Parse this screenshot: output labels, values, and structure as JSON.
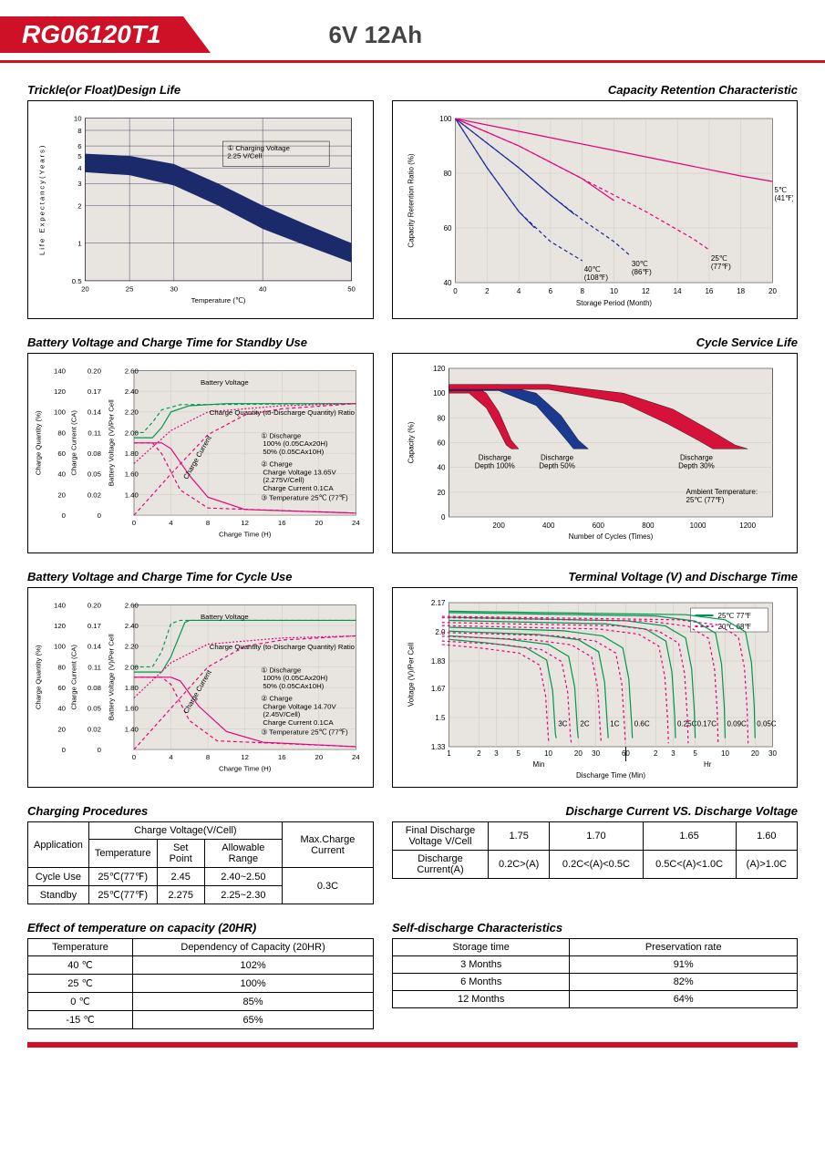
{
  "header": {
    "model": "RG06120T1",
    "spec": "6V  12Ah"
  },
  "sections": {
    "trickle": {
      "title": "Trickle(or Float)Design Life"
    },
    "retention": {
      "title": "Capacity Retention  Characteristic"
    },
    "standby": {
      "title": "Battery Voltage and Charge Time for Standby Use"
    },
    "cycle_life": {
      "title": "Cycle Service Life"
    },
    "cycle_use": {
      "title": "Battery Voltage and Charge Time for Cycle Use"
    },
    "terminal": {
      "title": "Terminal Voltage (V) and Discharge Time"
    },
    "charging_proc": {
      "title": "Charging Procedures"
    },
    "discharge_vs": {
      "title": "Discharge Current VS. Discharge Voltage"
    },
    "temp_effect": {
      "title": "Effect of temperature on capacity (20HR)"
    },
    "self_discharge": {
      "title": "Self-discharge Characteristics"
    }
  },
  "trickle_chart": {
    "type": "area-band",
    "background_color": "#e8e4df",
    "grid_color": "#2d1a4a",
    "band_color": "#1b2a6b",
    "xlabel": "Temperature (℃)",
    "ylabel": "Life Expectancy(Years)",
    "x_ticks": [
      "20",
      "25",
      "30",
      "40",
      "50"
    ],
    "y_ticks": [
      "0.5",
      "1",
      "2",
      "3",
      "4",
      "5",
      "6",
      "8",
      "10"
    ],
    "upper_band": [
      [
        20,
        5.2
      ],
      [
        25,
        5.0
      ],
      [
        30,
        4.3
      ],
      [
        35,
        3.0
      ],
      [
        40,
        2.0
      ],
      [
        45,
        1.4
      ],
      [
        50,
        1.0
      ]
    ],
    "lower_band": [
      [
        20,
        3.7
      ],
      [
        25,
        3.5
      ],
      [
        30,
        2.9
      ],
      [
        35,
        2.0
      ],
      [
        40,
        1.3
      ],
      [
        45,
        0.95
      ],
      [
        50,
        0.7
      ]
    ],
    "note": "① Charging Voltage\n2.25 V/Cell",
    "title_fontsize": 8
  },
  "retention_chart": {
    "type": "line",
    "background_color": "#e8e4df",
    "grid_color": "#c9c2bb",
    "xlabel": "Storage Period (Month)",
    "ylabel": "Capacity Retention Ratio (%)",
    "x_ticks": [
      "0",
      "2",
      "4",
      "6",
      "8",
      "10",
      "12",
      "14",
      "16",
      "18",
      "20"
    ],
    "y_ticks": [
      "40",
      "60",
      "80",
      "100"
    ],
    "series": [
      {
        "label": "40℃\n(108℉)",
        "color": "#1b2a9b",
        "dash": "4,3",
        "points": [
          [
            0,
            100
          ],
          [
            2,
            82
          ],
          [
            4,
            66
          ],
          [
            6,
            55
          ],
          [
            8,
            48
          ]
        ]
      },
      {
        "label": "30℃\n(86℉)",
        "color": "#1b2a9b",
        "dash": "4,3",
        "points": [
          [
            0,
            100
          ],
          [
            4,
            82
          ],
          [
            6,
            72
          ],
          [
            8,
            63
          ],
          [
            10,
            55
          ],
          [
            11,
            50
          ]
        ]
      },
      {
        "label": "25℃\n(77℉)",
        "color": "#e6007e",
        "dash": "4,3",
        "points": [
          [
            0,
            100
          ],
          [
            4,
            90
          ],
          [
            8,
            78
          ],
          [
            12,
            66
          ],
          [
            15,
            56
          ],
          [
            16,
            52
          ]
        ]
      },
      {
        "label": "5℃\n(41℉)",
        "color": "#e6007e",
        "dash": null,
        "points": [
          [
            0,
            100
          ],
          [
            6,
            93
          ],
          [
            12,
            86
          ],
          [
            18,
            79
          ],
          [
            20,
            77
          ]
        ]
      }
    ],
    "solid_overlays": [
      {
        "color": "#1b2a9b",
        "points": [
          [
            0,
            100
          ],
          [
            2,
            82
          ],
          [
            4,
            66
          ],
          [
            5,
            60
          ]
        ]
      },
      {
        "color": "#1b2a9b",
        "points": [
          [
            0,
            100
          ],
          [
            4,
            82
          ],
          [
            6,
            72
          ],
          [
            7.5,
            65
          ]
        ]
      },
      {
        "color": "#e6007e",
        "points": [
          [
            0,
            100
          ],
          [
            4,
            90
          ],
          [
            8,
            78
          ],
          [
            10,
            70
          ]
        ]
      }
    ]
  },
  "standby_chart": {
    "type": "multi-axis-line",
    "background_color": "#e8e4df",
    "grid_color": "#c9c2bb",
    "xlabel": "Charge Time (H)",
    "x_ticks": [
      "0",
      "4",
      "8",
      "12",
      "16",
      "20",
      "24"
    ],
    "y1_label": "Charge Quantity (%)",
    "y1_ticks": [
      "0",
      "20",
      "40",
      "60",
      "80",
      "100",
      "120",
      "140"
    ],
    "y1_color": "#00974d",
    "y2_label": "Charge Current (CA)",
    "y2_ticks": [
      "0",
      "0.02",
      "0.05",
      "0.08",
      "0.11",
      "0.14",
      "0.17",
      "0.20"
    ],
    "y2_color": "#e6007e",
    "y3_label": "Battery Voltage (V)/Per Cell",
    "y3_ticks": [
      "",
      "1.40",
      "1.60",
      "1.80",
      "2.00",
      "2.20",
      "2.40",
      "2.60"
    ],
    "y3_color": "#00974d",
    "battery_voltage_100": {
      "color": "#00974d",
      "points": [
        [
          0,
          1.95
        ],
        [
          2,
          1.95
        ],
        [
          3,
          2.05
        ],
        [
          4,
          2.2
        ],
        [
          6,
          2.26
        ],
        [
          10,
          2.28
        ],
        [
          24,
          2.28
        ]
      ]
    },
    "battery_voltage_50": {
      "color": "#00974d",
      "dash": "4,3",
      "points": [
        [
          0,
          2.0
        ],
        [
          1,
          2.0
        ],
        [
          2,
          2.1
        ],
        [
          3,
          2.22
        ],
        [
          5,
          2.27
        ],
        [
          24,
          2.28
        ]
      ]
    },
    "charge_current_100": {
      "color": "#e6007e",
      "points": [
        [
          0,
          0.1
        ],
        [
          3,
          0.1
        ],
        [
          4,
          0.092
        ],
        [
          6,
          0.055
        ],
        [
          8,
          0.025
        ],
        [
          12,
          0.008
        ],
        [
          24,
          0.003
        ]
      ]
    },
    "charge_current_50": {
      "color": "#e6007e",
      "dash": "4,3",
      "points": [
        [
          0,
          0.1
        ],
        [
          2,
          0.1
        ],
        [
          3,
          0.085
        ],
        [
          5,
          0.035
        ],
        [
          8,
          0.01
        ],
        [
          24,
          0.003
        ]
      ]
    },
    "charge_qty_100": {
      "color": "#e6007e",
      "dash": "4,3",
      "points": [
        [
          0,
          0
        ],
        [
          4,
          40
        ],
        [
          8,
          78
        ],
        [
          12,
          97
        ],
        [
          16,
          103
        ],
        [
          24,
          108
        ]
      ]
    },
    "charge_qty_50": {
      "color": "#e6007e",
      "dash": "2,2",
      "points": [
        [
          0,
          50
        ],
        [
          4,
          82
        ],
        [
          8,
          100
        ],
        [
          16,
          106
        ],
        [
          24,
          108
        ]
      ]
    },
    "notes": [
      "Battery Voltage",
      "Charge Quantity (to-Discharge Quantity) Ratio",
      "① Discharge\n   100% (0.05CAx20H)\n   50% (0.05CAx10H)",
      "② Charge\n   Charge Voltage 13.65V\n   (2.275V/Cell)\n   Charge Current 0.1CA",
      "③ Temperature 25℃ (77℉)",
      "Charge Current"
    ]
  },
  "cycle_life_chart": {
    "type": "area-band",
    "background_color": "#e8e4df",
    "grid_color": "#c9c2bb",
    "xlabel": "Number of Cycles (Times)",
    "ylabel": "Capacity (%)",
    "x_ticks": [
      "200",
      "400",
      "600",
      "800",
      "1000",
      "1200"
    ],
    "y_ticks": [
      "0",
      "20",
      "40",
      "60",
      "80",
      "100",
      "120"
    ],
    "bands": [
      {
        "label": "Discharge\nDepth 100%",
        "fill": "#d6123a",
        "upper": [
          [
            0,
            105
          ],
          [
            100,
            106
          ],
          [
            150,
            100
          ],
          [
            200,
            85
          ],
          [
            250,
            62
          ],
          [
            280,
            55
          ]
        ],
        "lower": [
          [
            0,
            100
          ],
          [
            80,
            100
          ],
          [
            150,
            88
          ],
          [
            200,
            70
          ],
          [
            230,
            58
          ],
          [
            250,
            55
          ]
        ]
      },
      {
        "label": "Discharge\nDepth 50%",
        "fill": "#1b3a8f",
        "upper": [
          [
            0,
            106
          ],
          [
            200,
            107
          ],
          [
            350,
            100
          ],
          [
            450,
            82
          ],
          [
            520,
            62
          ],
          [
            560,
            55
          ]
        ],
        "lower": [
          [
            0,
            102
          ],
          [
            200,
            102
          ],
          [
            350,
            90
          ],
          [
            430,
            72
          ],
          [
            480,
            60
          ],
          [
            500,
            55
          ]
        ]
      },
      {
        "label": "Discharge\nDepth 30%",
        "fill": "#d6123a",
        "upper": [
          [
            0,
            107
          ],
          [
            400,
            107
          ],
          [
            700,
            100
          ],
          [
            900,
            87
          ],
          [
            1050,
            70
          ],
          [
            1150,
            58
          ],
          [
            1200,
            55
          ]
        ],
        "lower": [
          [
            0,
            103
          ],
          [
            400,
            103
          ],
          [
            700,
            92
          ],
          [
            880,
            75
          ],
          [
            1000,
            62
          ],
          [
            1060,
            55
          ]
        ]
      }
    ],
    "ambient_note": "Ambient Temperature:\n25℃ (77℉)"
  },
  "cycle_use_chart": {
    "type": "multi-axis-line",
    "background_color": "#e8e4df",
    "grid_color": "#c9c2bb",
    "xlabel": "Charge Time (H)",
    "x_ticks": [
      "0",
      "4",
      "8",
      "12",
      "16",
      "20",
      "24"
    ],
    "y1_label": "Charge Quantity (%)",
    "y1_ticks": [
      "0",
      "20",
      "40",
      "60",
      "80",
      "100",
      "120",
      "140"
    ],
    "y1_color": "#00974d",
    "y2_label": "Charge Current (CA)",
    "y2_ticks": [
      "0",
      "0.02",
      "0.05",
      "0.08",
      "0.11",
      "0.14",
      "0.17",
      "0.20"
    ],
    "y2_color": "#e6007e",
    "y3_label": "Battery Voltage (V)/Per Cell",
    "y3_ticks": [
      "",
      "1.40",
      "1.60",
      "1.80",
      "2.00",
      "2.20",
      "2.40",
      "2.60"
    ],
    "y3_color": "#00974d",
    "battery_voltage_100": {
      "color": "#00974d",
      "points": [
        [
          0,
          1.95
        ],
        [
          3,
          1.95
        ],
        [
          4,
          2.1
        ],
        [
          5.5,
          2.43
        ],
        [
          6,
          2.45
        ],
        [
          24,
          2.45
        ]
      ]
    },
    "battery_voltage_50": {
      "color": "#00974d",
      "dash": "4,3",
      "points": [
        [
          0,
          2.0
        ],
        [
          2,
          2.0
        ],
        [
          3,
          2.15
        ],
        [
          4,
          2.42
        ],
        [
          5,
          2.45
        ],
        [
          24,
          2.45
        ]
      ]
    },
    "charge_current_100": {
      "color": "#e6007e",
      "points": [
        [
          0,
          0.1
        ],
        [
          4,
          0.1
        ],
        [
          5,
          0.095
        ],
        [
          7,
          0.06
        ],
        [
          10,
          0.025
        ],
        [
          14,
          0.01
        ],
        [
          24,
          0.004
        ]
      ]
    },
    "charge_current_50": {
      "color": "#e6007e",
      "dash": "4,3",
      "points": [
        [
          0,
          0.1
        ],
        [
          3,
          0.1
        ],
        [
          4,
          0.09
        ],
        [
          6,
          0.04
        ],
        [
          9,
          0.012
        ],
        [
          24,
          0.004
        ]
      ]
    },
    "charge_qty_100": {
      "color": "#e6007e",
      "dash": "4,3",
      "points": [
        [
          0,
          0
        ],
        [
          4,
          40
        ],
        [
          8,
          80
        ],
        [
          12,
          100
        ],
        [
          16,
          106
        ],
        [
          24,
          110
        ]
      ]
    },
    "charge_qty_50": {
      "color": "#e6007e",
      "dash": "2,2",
      "points": [
        [
          0,
          50
        ],
        [
          4,
          84
        ],
        [
          8,
          102
        ],
        [
          16,
          108
        ],
        [
          24,
          110
        ]
      ]
    },
    "notes": [
      "Battery Voltage",
      "Charge Quantity (to-Discharge Quantity) Ratio",
      "① Discharge\n   100% (0.05CAx20H)\n   50% (0.05CAx10H)",
      "② Charge\n   Charge Voltage 14.70V\n   (2.45V/Cell)\n   Charge Current 0.1CA",
      "③ Temperature 25℃ (77℉)",
      "Charge Current"
    ]
  },
  "terminal_chart": {
    "type": "line-log",
    "background_color": "#e8e4df",
    "grid_color": "#c9c2bb",
    "xlabel": "Discharge Time (Min)",
    "ylabel": "Voltage (V)/Per Cell",
    "x_sections": [
      "Min",
      "Hr"
    ],
    "x_ticks_min": [
      "1",
      "2",
      "3",
      "5",
      "10",
      "20",
      "30",
      "60"
    ],
    "x_ticks_hr": [
      "2",
      "3",
      "5",
      "10",
      "20",
      "30"
    ],
    "y_ticks": [
      "1.33",
      "1.5",
      "1.67",
      "1.83",
      "2.0",
      "2.17"
    ],
    "legend": [
      {
        "label": "25℃ 77℉",
        "color": "#00974d",
        "dash": null
      },
      {
        "label": "20℃ 68℉",
        "color": "#e6007e",
        "dash": "3,3"
      }
    ],
    "curves": [
      {
        "label": "3C",
        "x_end": 12,
        "pairs": true
      },
      {
        "label": "2C",
        "x_end": 20,
        "pairs": true
      },
      {
        "label": "1C",
        "x_end": 40,
        "pairs": true
      },
      {
        "label": "0.6C",
        "x_end": 70,
        "pairs": true
      },
      {
        "label": "0.25C",
        "x_end": 190,
        "pairs": true
      },
      {
        "label": "0.17C",
        "x_end": 300,
        "pairs": true
      },
      {
        "label": "0.09C",
        "x_end": 600,
        "pairs": true
      },
      {
        "label": "0.05C",
        "x_end": 1200,
        "pairs": true
      }
    ]
  },
  "charging_proc_table": {
    "headers": {
      "app": "Application",
      "cv": "Charge Voltage(V/Cell)",
      "temp": "Temperature",
      "set": "Set Point",
      "range": "Allowable Range",
      "max": "Max.Charge Current"
    },
    "rows": [
      {
        "app": "Cycle Use",
        "temp": "25℃(77℉)",
        "set": "2.45",
        "range": "2.40~2.50"
      },
      {
        "app": "Standby",
        "temp": "25℃(77℉)",
        "set": "2.275",
        "range": "2.25~2.30"
      }
    ],
    "max_current": "0.3C"
  },
  "discharge_vs_table": {
    "h_voltage": "Final Discharge\nVoltage V/Cell",
    "h_current": "Discharge\nCurrent(A)",
    "cols": [
      "1.75",
      "1.70",
      "1.65",
      "1.60"
    ],
    "vals": [
      "0.2C>(A)",
      "0.2C<(A)<0.5C",
      "0.5C<(A)<1.0C",
      "(A)>1.0C"
    ]
  },
  "temp_effect_table": {
    "headers": [
      "Temperature",
      "Dependency of Capacity (20HR)"
    ],
    "rows": [
      [
        "40 ℃",
        "102%"
      ],
      [
        "25 ℃",
        "100%"
      ],
      [
        "0 ℃",
        "85%"
      ],
      [
        "-15 ℃",
        "65%"
      ]
    ]
  },
  "self_discharge_table": {
    "headers": [
      "Storage time",
      "Preservation rate"
    ],
    "rows": [
      [
        "3 Months",
        "91%"
      ],
      [
        "6 Months",
        "82%"
      ],
      [
        "12 Months",
        "64%"
      ]
    ]
  },
  "colors": {
    "brand_red": "#ce1126",
    "frame": "#000000",
    "axis": "#000000",
    "panel_bg": "#e8e4df"
  }
}
